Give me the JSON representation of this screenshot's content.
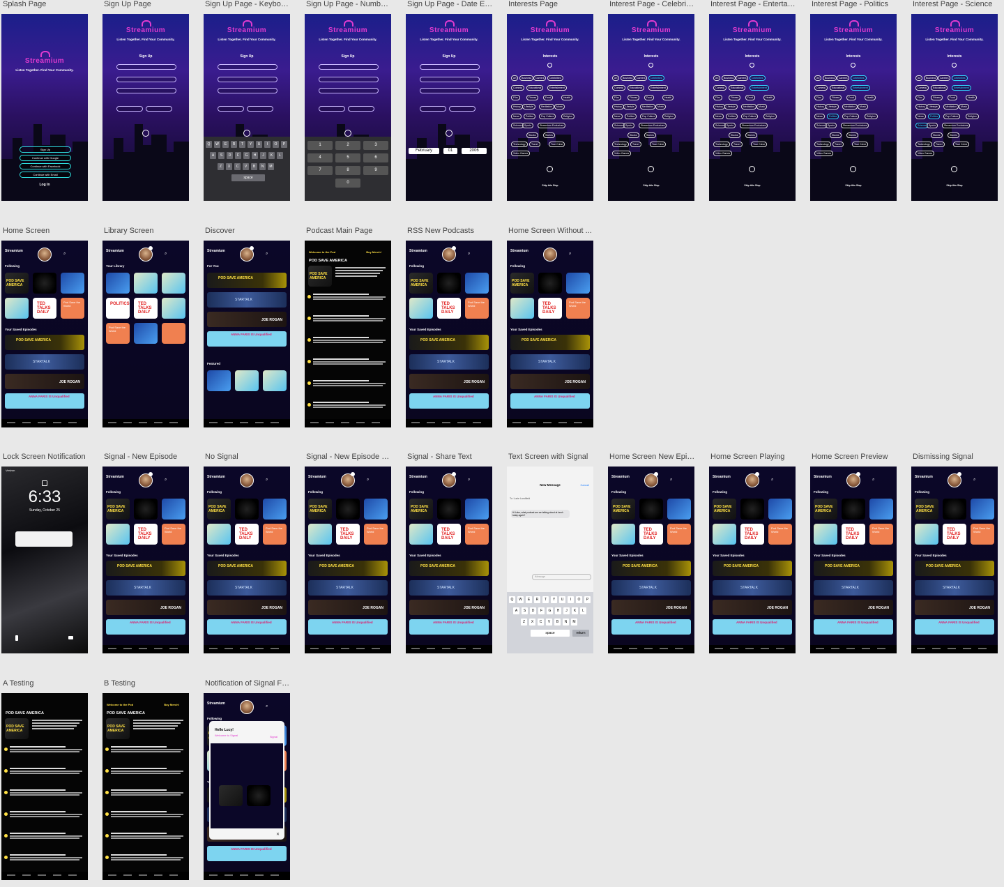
{
  "brand": "Streamium",
  "tagline": "Listen Together. Find Your Community.",
  "frames": [
    {
      "label": "Splash Page"
    },
    {
      "label": "Sign Up Page"
    },
    {
      "label": "Sign Up Page - Keyboard"
    },
    {
      "label": "Sign Up Page - Number..."
    },
    {
      "label": "Sign Up Page - Date Ent..."
    },
    {
      "label": "Interests Page"
    },
    {
      "label": "Interest Page - Celebrities"
    },
    {
      "label": "Interest Page - Entertain..."
    },
    {
      "label": "Interest Page - Politics"
    },
    {
      "label": "Interest Page - Science"
    },
    {
      "label": "Home Screen"
    },
    {
      "label": "Library Screen"
    },
    {
      "label": "Discover"
    },
    {
      "label": "Podcast Main Page"
    },
    {
      "label": "RSS New Podcasts"
    },
    {
      "label": "Home Screen Without ..."
    },
    {
      "label": "Lock Screen Notification"
    },
    {
      "label": "Signal - New Episode"
    },
    {
      "label": "No Signal"
    },
    {
      "label": "Signal - New Episode N..."
    },
    {
      "label": "Signal - Share Text"
    },
    {
      "label": "Text Screen with Signal"
    },
    {
      "label": "Home Screen New Epis..."
    },
    {
      "label": "Home Screen Playing"
    },
    {
      "label": "Home Screen Preview"
    },
    {
      "label": "Dismissing Signal"
    },
    {
      "label": "A Testing"
    },
    {
      "label": "B Testing"
    },
    {
      "label": "Notification of Signal Fe..."
    }
  ],
  "splash": {
    "signup": "Sign Up",
    "google": "Continue with Google",
    "facebook": "Continue with Facebook",
    "email": "Continue with Email",
    "login": "Log In"
  },
  "signup": {
    "title": "Sign Up",
    "date_month": "February",
    "date_day": "01",
    "date_year": "2006"
  },
  "keyboard": {
    "row1": [
      "Q",
      "W",
      "E",
      "R",
      "T",
      "Y",
      "U",
      "I",
      "O",
      "P"
    ],
    "row2": [
      "A",
      "S",
      "D",
      "F",
      "G",
      "H",
      "J",
      "K",
      "L"
    ],
    "row3": [
      "Z",
      "X",
      "C",
      "V",
      "B",
      "N",
      "M"
    ],
    "space": "space",
    "numbers": [
      "1",
      "2",
      "3",
      "4",
      "5",
      "6",
      "7",
      "8",
      "9",
      "0"
    ]
  },
  "interests": {
    "title": "Interests",
    "chips": [
      "Art",
      "Business",
      "Careers",
      "Celebrities",
      "Comedy",
      "Educational",
      "Entertainment",
      "Film",
      "Fitness",
      "Food",
      "Health",
      "History",
      "Lifestyle",
      "Meditation",
      "Music",
      "News",
      "Politics",
      "Pop Culture",
      "Religion",
      "Science",
      "Sports",
      "Streamium Exclusives",
      "Stocks",
      "Stories",
      "Technology",
      "Travel",
      "True Crime",
      "Video Games"
    ],
    "skip": "Skip this Step"
  },
  "home": {
    "following": "Following",
    "saved": "Your Saved Episodes",
    "library": "Your Library",
    "for_you": "For You",
    "featured": "Featured"
  },
  "tiles": {
    "pod_save": "POD SAVE AMERICA",
    "ted": "TED TALKS DAILY",
    "world": "Pod Save the World",
    "politics": "POLITICS",
    "startalk": "STARTALK",
    "joe": "JOE ROGAN",
    "anna": "ANNA FARIS IS Unqualified"
  },
  "podcast": {
    "welcome": "Welcome to the Pod",
    "merch": "Buy Merch!",
    "title": "POD SAVE AMERICA"
  },
  "lock": {
    "carrier": "Verizon",
    "time": "6:33",
    "date": "Sunday, October 25"
  },
  "text": {
    "title": "New Message",
    "cancel": "Cancel",
    "to": "To: Lucie Landfield",
    "message": "Hi Lake, what podcast are we talking about at lunch today again?",
    "placeholder": "iMessage",
    "return": "return"
  },
  "signal_popup": {
    "hello": "Hello Lucy!",
    "welcome": "Welcome to Signal",
    "app": "Signal"
  }
}
